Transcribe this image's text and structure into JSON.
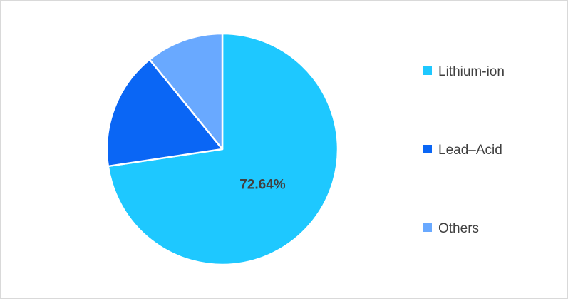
{
  "chart_data": {
    "type": "pie",
    "title": "",
    "labels": [
      "Lithium-ion",
      "Lead–Acid",
      "Others"
    ],
    "values": [
      72.64,
      16.5,
      10.86
    ],
    "unit": "%",
    "colors": [
      "#1ec8ff",
      "#0a66f5",
      "#69a9ff"
    ],
    "data_labels": [
      "72.64%",
      "",
      ""
    ],
    "legend": {
      "position": "right",
      "entries": [
        "Lithium-ion",
        "Lead–Acid",
        "Others"
      ]
    }
  }
}
